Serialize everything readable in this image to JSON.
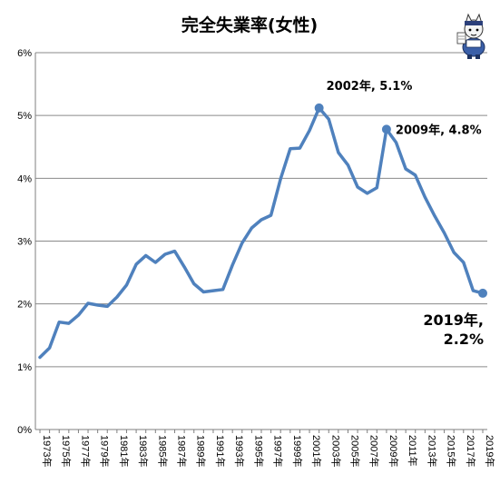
{
  "chart_data": {
    "type": "line",
    "title": "完全失業率(女性)",
    "x": [
      1973,
      1974,
      1975,
      1976,
      1977,
      1978,
      1979,
      1980,
      1981,
      1982,
      1983,
      1984,
      1985,
      1986,
      1987,
      1988,
      1989,
      1990,
      1991,
      1992,
      1993,
      1994,
      1995,
      1996,
      1997,
      1998,
      1999,
      2000,
      2001,
      2002,
      2003,
      2004,
      2005,
      2006,
      2007,
      2008,
      2009,
      2010,
      2011,
      2012,
      2013,
      2014,
      2015,
      2016,
      2017,
      2018,
      2019
    ],
    "x_tick_labels": [
      "1973年",
      "1975年",
      "1977年",
      "1979年",
      "1981年",
      "1983年",
      "1985年",
      "1987年",
      "1989年",
      "1991年",
      "1993年",
      "1995年",
      "1997年",
      "1999年",
      "2001年",
      "2003年",
      "2005年",
      "2007年",
      "2009年",
      "2011年",
      "2013年",
      "2015年",
      "2017年",
      "2019年"
    ],
    "series": [
      {
        "name": "",
        "color": "#4f81bd",
        "values": [
          1.15,
          1.3,
          1.71,
          1.69,
          1.82,
          2.01,
          1.98,
          1.96,
          2.11,
          2.3,
          2.63,
          2.77,
          2.66,
          2.79,
          2.84,
          2.59,
          2.32,
          2.19,
          2.21,
          2.23,
          2.62,
          2.97,
          3.21,
          3.34,
          3.41,
          3.99,
          4.47,
          4.48,
          4.76,
          5.12,
          4.94,
          4.41,
          4.21,
          3.86,
          3.76,
          3.85,
          4.78,
          4.57,
          4.15,
          4.05,
          3.7,
          3.4,
          3.13,
          2.82,
          2.66,
          2.21,
          2.17
        ]
      }
    ],
    "ylim": [
      0,
      6
    ],
    "y_ticks": [
      0,
      1,
      2,
      3,
      4,
      5,
      6
    ],
    "y_tick_format": "%",
    "grid": true,
    "annotations": [
      {
        "x": 2002,
        "y": 5.12,
        "text": "2002年, 5.1%",
        "marker": true
      },
      {
        "x": 2009,
        "y": 4.78,
        "text": "2009年, 4.8%",
        "marker": true
      },
      {
        "x": 2019,
        "y": 2.17,
        "text_lines": [
          "2019年,",
          "2.2%"
        ],
        "marker": true
      }
    ],
    "decoration": "mascot-icon"
  }
}
